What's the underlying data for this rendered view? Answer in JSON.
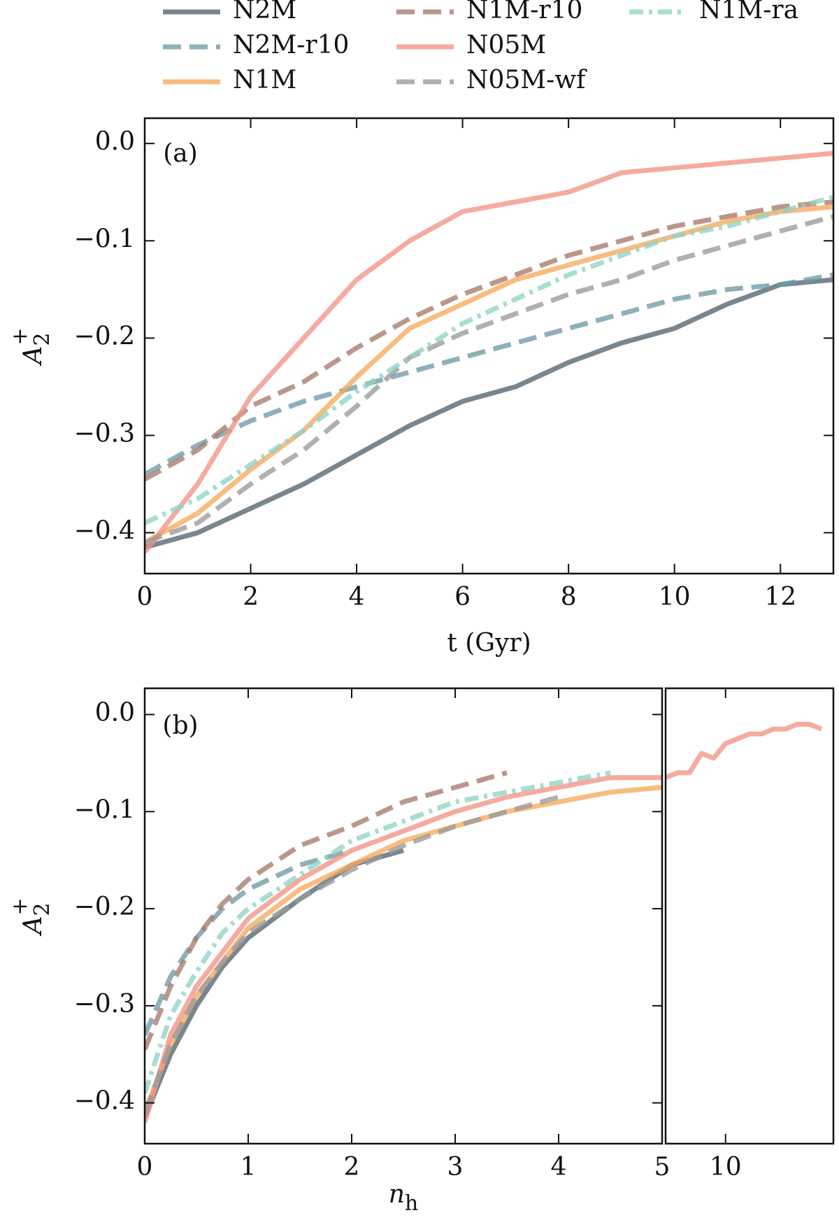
{
  "legend": {
    "columns": 3
  },
  "chart_data": [
    {
      "type": "line",
      "annotation": "(a)",
      "xlabel": "t (Gyr)",
      "ylabel": {
        "base": "A",
        "sub": "2",
        "sup": "+"
      },
      "x": [
        0,
        1,
        2,
        3,
        4,
        5,
        6,
        7,
        8,
        9,
        10,
        11,
        12,
        13
      ],
      "xlim": [
        0,
        13
      ],
      "xticks": [
        0,
        2,
        4,
        6,
        8,
        10,
        12
      ],
      "ylim": [
        -0.442,
        0.026
      ],
      "yticks": [
        {
          "value": -0.4,
          "label": "−0.4"
        },
        {
          "value": -0.3,
          "label": "−0.3"
        },
        {
          "value": -0.2,
          "label": "−0.2"
        },
        {
          "value": -0.1,
          "label": "−0.1"
        },
        {
          "value": 0,
          "label": "0.0"
        }
      ],
      "series": [
        {
          "name": "N2M",
          "color": "#52646f",
          "linestyle": "solid",
          "values": [
            -0.415,
            -0.4,
            -0.375,
            -0.35,
            -0.32,
            -0.29,
            -0.265,
            -0.25,
            -0.225,
            -0.205,
            -0.19,
            -0.165,
            -0.145,
            -0.14
          ]
        },
        {
          "name": "N2M-r10",
          "color": "#6e9aa8",
          "linestyle": "dashed",
          "values": [
            -0.34,
            -0.31,
            -0.285,
            -0.265,
            -0.25,
            -0.235,
            -0.22,
            -0.205,
            -0.19,
            -0.175,
            -0.16,
            -0.15,
            -0.145,
            -0.135
          ]
        },
        {
          "name": "N1M",
          "color": "#f7a95c",
          "linestyle": "solid",
          "values": [
            -0.41,
            -0.38,
            -0.335,
            -0.295,
            -0.24,
            -0.19,
            -0.165,
            -0.14,
            -0.125,
            -0.11,
            -0.095,
            -0.08,
            -0.07,
            -0.065
          ]
        },
        {
          "name": "N1M-r10",
          "color": "#a87a6a",
          "linestyle": "dashed",
          "values": [
            -0.345,
            -0.315,
            -0.27,
            -0.245,
            -0.21,
            -0.18,
            -0.155,
            -0.135,
            -0.115,
            -0.1,
            -0.085,
            -0.075,
            -0.065,
            -0.06
          ]
        },
        {
          "name": "N05M",
          "color": "#f29385",
          "linestyle": "solid",
          "values": [
            -0.42,
            -0.35,
            -0.26,
            -0.2,
            -0.14,
            -0.1,
            -0.07,
            -0.06,
            -0.05,
            -0.03,
            -0.025,
            -0.02,
            -0.015,
            -0.01
          ]
        },
        {
          "name": "N05M-wf",
          "color": "#9a9a9a",
          "linestyle": "dashed",
          "values": [
            -0.41,
            -0.39,
            -0.35,
            -0.315,
            -0.27,
            -0.22,
            -0.195,
            -0.175,
            -0.155,
            -0.14,
            -0.12,
            -0.105,
            -0.09,
            -0.075
          ]
        },
        {
          "name": "N1M-ra",
          "color": "#8fd4c4",
          "linestyle": "dashdot",
          "values": [
            -0.39,
            -0.365,
            -0.33,
            -0.295,
            -0.255,
            -0.22,
            -0.185,
            -0.16,
            -0.135,
            -0.115,
            -0.095,
            -0.085,
            -0.07,
            -0.055
          ]
        }
      ]
    },
    {
      "type": "line",
      "annotation": "(b)",
      "xlabel": {
        "base": "n",
        "sub": "h"
      },
      "ylabel": {
        "base": "A",
        "sub": "2",
        "sup": "+"
      },
      "x": [
        0,
        0.25,
        0.5,
        0.75,
        1,
        1.5,
        2,
        2.5,
        3,
        3.5,
        4,
        4.5,
        5
      ],
      "xlim": [
        0,
        5
      ],
      "xticks": [
        0,
        1,
        2,
        3,
        4,
        5
      ],
      "ylim": [
        -0.442,
        0.027
      ],
      "yticks": [
        {
          "value": -0.4,
          "label": "−0.4"
        },
        {
          "value": -0.3,
          "label": "−0.3"
        },
        {
          "value": -0.2,
          "label": "−0.2"
        },
        {
          "value": -0.1,
          "label": "−0.1"
        },
        {
          "value": 0,
          "label": "0.0"
        }
      ],
      "series": [
        {
          "color": "#52646f",
          "linestyle": "solid",
          "values": [
            -0.415,
            -0.35,
            -0.3,
            -0.26,
            -0.23,
            -0.19,
            -0.155,
            -0.14,
            null,
            null,
            null,
            null,
            null
          ]
        },
        {
          "color": "#6e9aa8",
          "linestyle": "dashed",
          "values": [
            -0.33,
            -0.27,
            -0.23,
            -0.2,
            -0.18,
            -0.155,
            -0.14,
            null,
            null,
            null,
            null,
            null,
            null
          ]
        },
        {
          "color": "#f7a95c",
          "linestyle": "solid",
          "values": [
            -0.41,
            -0.34,
            -0.29,
            -0.255,
            -0.22,
            -0.18,
            -0.155,
            -0.13,
            -0.115,
            -0.1,
            -0.09,
            -0.08,
            -0.075
          ]
        },
        {
          "color": "#a87a6a",
          "linestyle": "dashed",
          "values": [
            -0.345,
            -0.28,
            -0.23,
            -0.195,
            -0.17,
            -0.135,
            -0.115,
            -0.09,
            -0.075,
            -0.06,
            null,
            null,
            null
          ]
        },
        {
          "color": "#f29385",
          "linestyle": "solid",
          "values": [
            -0.42,
            -0.33,
            -0.28,
            -0.245,
            -0.21,
            -0.17,
            -0.14,
            -0.12,
            -0.1,
            -0.085,
            -0.075,
            -0.065,
            -0.065
          ]
        },
        {
          "color": "#9a9a9a",
          "linestyle": "dashed",
          "values": [
            -0.41,
            -0.34,
            -0.29,
            -0.255,
            -0.225,
            -0.19,
            -0.16,
            -0.135,
            -0.115,
            -0.1,
            -0.085,
            null,
            null
          ]
        },
        {
          "color": "#8fd4c4",
          "linestyle": "dashdot",
          "values": [
            -0.39,
            -0.31,
            -0.265,
            -0.225,
            -0.2,
            -0.165,
            -0.13,
            -0.11,
            -0.09,
            -0.08,
            -0.07,
            -0.06,
            null
          ]
        }
      ]
    },
    {
      "type": "line",
      "x": [
        5,
        6,
        7,
        8,
        9,
        10,
        11,
        12,
        13,
        14,
        15,
        16,
        17,
        18
      ],
      "xlim": [
        5,
        19
      ],
      "xticks": [
        10
      ],
      "ylim": [
        -0.442,
        0.027
      ],
      "series": [
        {
          "color": "#f29385",
          "linestyle": "solid",
          "values": [
            -0.065,
            -0.06,
            -0.06,
            -0.04,
            -0.045,
            -0.03,
            -0.025,
            -0.02,
            -0.02,
            -0.015,
            -0.015,
            -0.01,
            -0.01,
            -0.015
          ]
        }
      ]
    }
  ]
}
